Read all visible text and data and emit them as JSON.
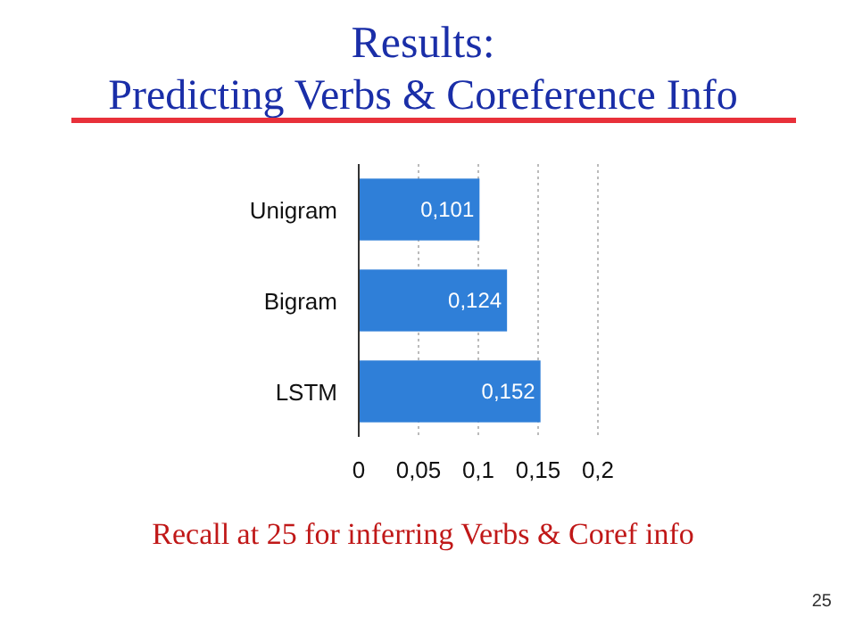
{
  "chart_data": {
    "type": "bar",
    "orientation": "horizontal",
    "title": "Results:",
    "subtitle": "Predicting Verbs & Coreference Info",
    "categories": [
      "Unigram",
      "Bigram",
      "LSTM"
    ],
    "values": [
      0.101,
      0.124,
      0.152
    ],
    "color": "#2f7fd8",
    "value_labels": [
      "0,101",
      "0,124",
      "0,152"
    ],
    "xlim": [
      0,
      0.2
    ],
    "xticks": [
      0,
      {
        "value": 0.05,
        "label": "0,05"
      },
      {
        "value": 0.1,
        "label": "0,1"
      },
      {
        "value": 0.15,
        "label": "0,15"
      },
      {
        "value": 0.2,
        "label": "0,2"
      }
    ],
    "grid": "x",
    "annotations": [
      "Recall at 25 for inferring Verbs & Coref info",
      "25"
    ]
  }
}
